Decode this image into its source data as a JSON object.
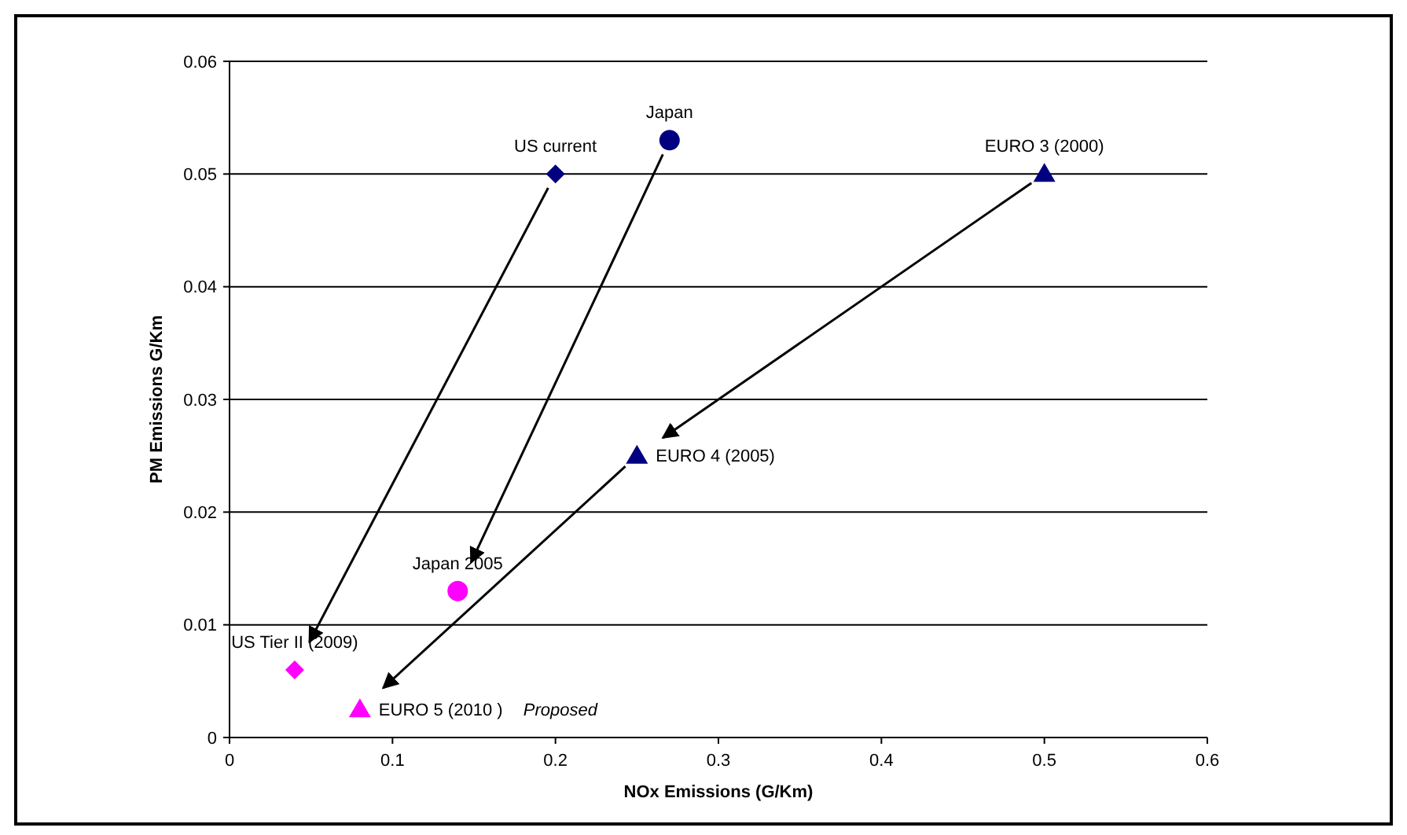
{
  "chart_data": {
    "type": "scatter",
    "xlabel": "NOx Emissions (G/Km)",
    "ylabel": "PM Emissions G/Km",
    "xlim": [
      0,
      0.6
    ],
    "xticks": [
      0,
      0.1,
      0.2,
      0.3,
      0.4,
      0.5,
      0.6
    ],
    "ylim": [
      0,
      0.06
    ],
    "yticks": [
      0,
      0.01,
      0.02,
      0.03,
      0.04,
      0.05,
      0.06
    ],
    "grid": "y",
    "series": [
      {
        "name": "US current",
        "color": "#000080",
        "marker": "diamond",
        "x": [
          0.2
        ],
        "values": [
          0.05
        ]
      },
      {
        "name": "Japan",
        "color": "#000080",
        "marker": "circle",
        "x": [
          0.27
        ],
        "values": [
          0.053
        ]
      },
      {
        "name": "EURO 3 (2000)",
        "color": "#000080",
        "marker": "triangle",
        "x": [
          0.5
        ],
        "values": [
          0.05
        ]
      },
      {
        "name": "EURO 4 (2005)",
        "color": "#000080",
        "marker": "triangle",
        "x": [
          0.25
        ],
        "values": [
          0.025
        ]
      },
      {
        "name": "Japan 2005",
        "color": "#ff00ff",
        "marker": "circle",
        "x": [
          0.14
        ],
        "values": [
          0.013
        ]
      },
      {
        "name": "US Tier II (2009)",
        "color": "#ff00ff",
        "marker": "diamond",
        "x": [
          0.04
        ],
        "values": [
          0.006
        ]
      },
      {
        "name": "EURO 5 (2010 )",
        "color": "#ff00ff",
        "marker": "triangle",
        "x": [
          0.08
        ],
        "values": [
          0.0025
        ]
      }
    ],
    "annotations": [
      "Proposed"
    ]
  }
}
